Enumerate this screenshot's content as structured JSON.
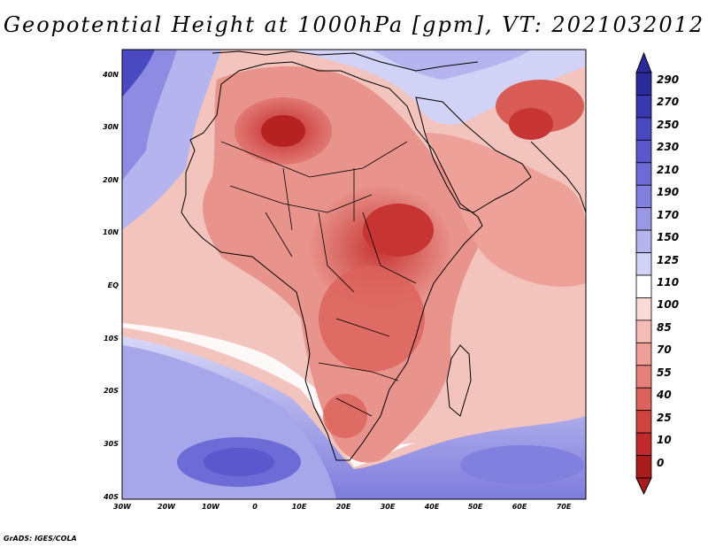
{
  "title": "Geopotential Height at 1000hPa [gpm], VT: 2021032012",
  "credit": "GrADS: IGES/COLA",
  "map": {
    "variable": "Geopotential Height",
    "level": "1000hPa",
    "units": "gpm",
    "valid_time": "2021032012",
    "lat_labels": [
      "40N",
      "30N",
      "20N",
      "10N",
      "EQ",
      "10S",
      "20S",
      "30S",
      "40S"
    ],
    "lon_labels": [
      "30W",
      "20W",
      "10W",
      "0",
      "10E",
      "20E",
      "30E",
      "40E",
      "50E",
      "60E",
      "70E"
    ],
    "lat_range": [
      -40,
      45
    ],
    "lon_range": [
      -30,
      75
    ]
  },
  "colorbar": {
    "levels": [
      "290",
      "270",
      "250",
      "230",
      "210",
      "190",
      "170",
      "150",
      "125",
      "110",
      "100",
      "85",
      "70",
      "55",
      "40",
      "25",
      "10",
      "0"
    ],
    "colors": [
      "#2b2a9a",
      "#3a38b0",
      "#4b49c2",
      "#5a58cc",
      "#6d6bd6",
      "#8280de",
      "#9a98e6",
      "#b6b4ee",
      "#d2d1f6",
      "#ffffff",
      "#fbd9d6",
      "#f6bcb6",
      "#ef9f97",
      "#e68078",
      "#dc625b",
      "#d04440",
      "#c02a2a",
      "#a81c1c"
    ]
  }
}
